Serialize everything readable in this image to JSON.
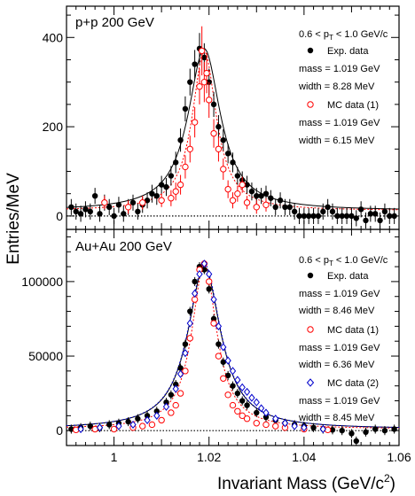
{
  "y_title": "Entries/MeV",
  "x_title_main": "Invariant Mass (GeV/c",
  "x_title_sup": "2",
  "x_title_close": ")",
  "x_ticks": [
    "1",
    "1.02",
    "1.04",
    "1.06"
  ],
  "xlim": [
    0.99,
    1.06
  ],
  "colors": {
    "exp": "#000000",
    "mc1": "#ff0000",
    "mc2": "#0000cc"
  },
  "chart_data": [
    {
      "type": "scatter",
      "system_label": "p+p 200 GeV",
      "pt_prefix": "0.6 < p",
      "pt_sub": "T",
      "pt_suffix": " < 1.0 GeV/c",
      "ylim": [
        -30,
        470
      ],
      "y_ticks": [
        "0",
        "200",
        "400"
      ],
      "legend": [
        {
          "name": "Exp. data",
          "marker": "filled-circle",
          "color": "#000000",
          "lines": [
            "mass = 1.019 GeV",
            "width = 8.28 MeV"
          ]
        },
        {
          "name": "MC data (1)",
          "marker": "open-circle",
          "color": "#ff0000",
          "lines": [
            "mass = 1.019 GeV",
            "width = 6.15 MeV"
          ]
        }
      ],
      "series": [
        {
          "name": "Exp. data",
          "marker": "filled-circle",
          "color": "#000000",
          "mass": 1.019,
          "width_mev": 8.28,
          "x": [
            0.991,
            0.992,
            0.993,
            0.994,
            0.995,
            0.996,
            0.997,
            0.998,
            0.999,
            1.0,
            1.001,
            1.002,
            1.003,
            1.004,
            1.005,
            1.006,
            1.007,
            1.008,
            1.009,
            1.01,
            1.011,
            1.012,
            1.013,
            1.014,
            1.015,
            1.016,
            1.017,
            1.018,
            1.019,
            1.02,
            1.021,
            1.022,
            1.023,
            1.024,
            1.025,
            1.026,
            1.027,
            1.028,
            1.029,
            1.03,
            1.031,
            1.032,
            1.033,
            1.034,
            1.035,
            1.036,
            1.037,
            1.038,
            1.039,
            1.04,
            1.041,
            1.042,
            1.043,
            1.044,
            1.045,
            1.046,
            1.047,
            1.048,
            1.049,
            1.05,
            1.051,
            1.052,
            1.053,
            1.054,
            1.055,
            1.056,
            1.057,
            1.058,
            1.059
          ],
          "y": [
            20,
            10,
            5,
            15,
            10,
            45,
            5,
            30,
            20,
            0,
            25,
            5,
            20,
            30,
            10,
            25,
            35,
            50,
            45,
            70,
            65,
            90,
            120,
            170,
            240,
            300,
            340,
            375,
            355,
            300,
            250,
            200,
            170,
            140,
            120,
            90,
            80,
            70,
            55,
            45,
            45,
            50,
            40,
            20,
            35,
            20,
            20,
            10,
            0,
            0,
            0,
            0,
            0,
            10,
            20,
            10,
            0,
            0,
            0,
            0,
            -5,
            15,
            -10,
            5,
            5,
            -10,
            10,
            0,
            0
          ],
          "err": [
            18,
            18,
            18,
            18,
            18,
            18,
            18,
            18,
            18,
            18,
            18,
            18,
            18,
            18,
            18,
            18,
            18,
            20,
            20,
            20,
            20,
            22,
            24,
            26,
            28,
            30,
            32,
            35,
            32,
            30,
            28,
            26,
            24,
            22,
            22,
            20,
            20,
            20,
            20,
            18,
            18,
            18,
            18,
            18,
            18,
            18,
            18,
            18,
            18,
            18,
            18,
            18,
            18,
            18,
            18,
            18,
            18,
            18,
            18,
            18,
            18,
            18,
            18,
            18,
            18,
            18,
            18,
            18,
            18
          ]
        },
        {
          "name": "MC data (1)",
          "marker": "open-circle",
          "color": "#ff0000",
          "mass": 1.019,
          "width_mev": 6.15,
          "x": [
            0.998,
            1.003,
            1.006,
            1.01,
            1.012,
            1.013,
            1.014,
            1.015,
            1.016,
            1.017,
            1.018,
            1.0185,
            1.019,
            1.0195,
            1.02,
            1.021,
            1.022,
            1.023,
            1.024,
            1.025,
            1.026,
            1.027,
            1.028,
            1.03,
            1.032
          ],
          "y": [
            30,
            20,
            30,
            35,
            40,
            55,
            70,
            110,
            150,
            210,
            290,
            370,
            300,
            320,
            260,
            185,
            150,
            105,
            60,
            35,
            50,
            70,
            30,
            20,
            25
          ],
          "err": [
            15,
            15,
            15,
            15,
            18,
            20,
            22,
            26,
            30,
            34,
            40,
            55,
            45,
            45,
            40,
            32,
            28,
            24,
            20,
            18,
            18,
            18,
            15,
            15,
            15
          ]
        }
      ]
    },
    {
      "type": "scatter",
      "system_label": "Au+Au 200 GeV",
      "pt_prefix": "0.6 < p",
      "pt_sub": "T",
      "pt_suffix": " < 1.0 GeV/c",
      "ylim": [
        -10000,
        135000
      ],
      "y_ticks": [
        "0",
        "50000",
        "100000"
      ],
      "legend": [
        {
          "name": "Exp. data",
          "marker": "filled-circle",
          "color": "#000000",
          "lines": [
            "mass = 1.019 GeV",
            "width = 8.46 MeV"
          ]
        },
        {
          "name": "MC data (1)",
          "marker": "open-circle",
          "color": "#ff0000",
          "lines": [
            "mass = 1.019 GeV",
            "width = 6.36 MeV"
          ]
        },
        {
          "name": "MC data (2)",
          "marker": "open-diamond",
          "color": "#0000cc",
          "lines": [
            "mass = 1.019 GeV",
            "width = 8.45 MeV"
          ]
        }
      ],
      "series": [
        {
          "name": "Exp. data",
          "marker": "filled-circle",
          "color": "#000000",
          "mass": 1.019,
          "width_mev": 8.46,
          "x": [
            0.991,
            0.993,
            0.995,
            0.997,
            0.999,
            1.001,
            1.003,
            1.005,
            1.007,
            1.009,
            1.011,
            1.012,
            1.013,
            1.014,
            1.015,
            1.016,
            1.017,
            1.018,
            1.019,
            1.02,
            1.021,
            1.022,
            1.023,
            1.024,
            1.025,
            1.026,
            1.027,
            1.028,
            1.03,
            1.032,
            1.034,
            1.036,
            1.038,
            1.04,
            1.042,
            1.044,
            1.046,
            1.048,
            1.05,
            1.051,
            1.053,
            1.055,
            1.057,
            1.059
          ],
          "y": [
            1000,
            2000,
            3000,
            2000,
            4000,
            5000,
            6000,
            8000,
            10000,
            13000,
            19000,
            24000,
            31000,
            42000,
            58000,
            80000,
            100000,
            110000,
            108000,
            95000,
            75000,
            58000,
            46000,
            37000,
            30000,
            25000,
            20000,
            17000,
            12000,
            9000,
            7000,
            5000,
            4000,
            3000,
            2000,
            1000,
            500,
            0,
            -2000,
            -7000,
            -1000,
            1000,
            0,
            1000
          ],
          "err": [
            3000,
            3000,
            3000,
            3000,
            3000,
            3000,
            3000,
            3000,
            3000,
            3000,
            3000,
            3000,
            3000,
            3000,
            3000,
            3000,
            3000,
            3000,
            3000,
            3000,
            3000,
            3000,
            3000,
            3000,
            3000,
            3000,
            3000,
            3000,
            3000,
            3000,
            3000,
            3000,
            3000,
            3000,
            3000,
            3000,
            3000,
            3000,
            3000,
            3000,
            3000,
            3000,
            3000,
            3000
          ]
        },
        {
          "name": "MC data (1)",
          "marker": "open-circle",
          "color": "#ff0000",
          "mass": 1.019,
          "width_mev": 6.36,
          "x": [
            0.992,
            0.996,
            1.0,
            1.004,
            1.006,
            1.008,
            1.01,
            1.012,
            1.013,
            1.014,
            1.015,
            1.016,
            1.017,
            1.018,
            1.019,
            1.02,
            1.021,
            1.022,
            1.023,
            1.024,
            1.025,
            1.026,
            1.027,
            1.028,
            1.03,
            1.032,
            1.034,
            1.036,
            1.04,
            1.045
          ],
          "y": [
            500,
            1000,
            1000,
            2000,
            3000,
            4000,
            7000,
            12000,
            17000,
            25000,
            40000,
            62000,
            88000,
            108000,
            112000,
            100000,
            72000,
            50000,
            35000,
            24000,
            17000,
            13000,
            10000,
            8000,
            5000,
            4000,
            3000,
            2000,
            1000,
            500
          ]
        },
        {
          "name": "MC data (2)",
          "marker": "open-diamond",
          "color": "#0000cc",
          "mass": 1.019,
          "width_mev": 8.45,
          "x": [
            0.993,
            0.997,
            1.001,
            1.004,
            1.007,
            1.009,
            1.011,
            1.013,
            1.014,
            1.015,
            1.016,
            1.017,
            1.018,
            1.019,
            1.02,
            1.021,
            1.022,
            1.023,
            1.024,
            1.025,
            1.026,
            1.027,
            1.028,
            1.029,
            1.03,
            1.031,
            1.032,
            1.034,
            1.036,
            1.038,
            1.04,
            1.044
          ],
          "y": [
            1000,
            2000,
            3000,
            4000,
            7000,
            10000,
            16000,
            28000,
            38000,
            52000,
            72000,
            92000,
            105000,
            112000,
            105000,
            88000,
            70000,
            56000,
            47000,
            40000,
            34000,
            29000,
            26000,
            22000,
            19000,
            15000,
            12000,
            8000,
            5000,
            3000,
            2000,
            1000
          ]
        }
      ]
    }
  ]
}
